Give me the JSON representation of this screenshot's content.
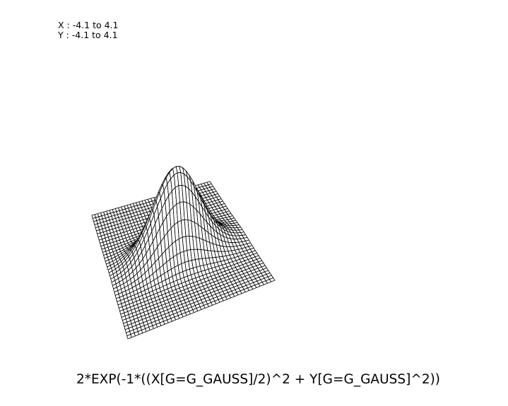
{
  "ranges": {
    "x_text": "X : -4.1 to 4.1",
    "y_text": "Y : -4.1 to 4.1"
  },
  "formula": "2*EXP(-1*((X[G=G_GAUSS]/2)^2 + Y[G=G_GAUSS]^2))",
  "chart_data": {
    "type": "surface",
    "function": "2*exp(-((x/2)^2 + y^2))",
    "x_range": [
      -4.1,
      4.1
    ],
    "y_range": [
      -4.1,
      4.1
    ],
    "z_range": [
      0,
      2
    ],
    "grid_lines": {
      "x": 41,
      "y": 41
    },
    "style": "wireframe",
    "line_color": "#000000",
    "fill_color": "#ffffff"
  }
}
